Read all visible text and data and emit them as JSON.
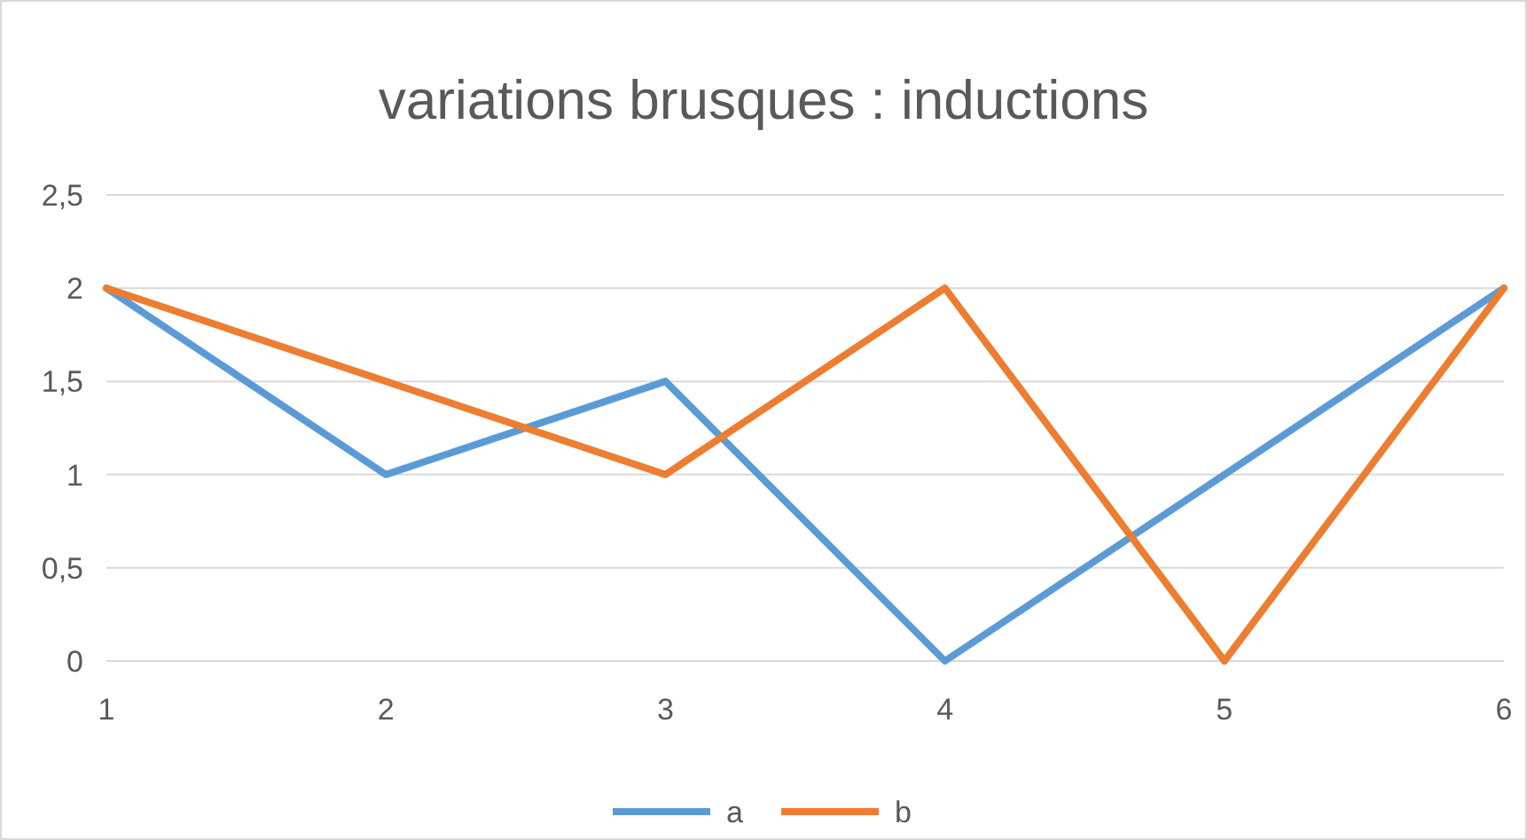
{
  "chart_data": {
    "type": "line",
    "title": "variations brusques : inductions",
    "categories": [
      "1",
      "2",
      "3",
      "4",
      "5",
      "6"
    ],
    "series": [
      {
        "name": "a",
        "color": "#5b9bd5",
        "values": [
          2,
          1,
          1.5,
          0,
          1,
          2
        ]
      },
      {
        "name": "b",
        "color": "#ed7d31",
        "values": [
          2,
          1.5,
          1,
          2,
          0,
          2
        ]
      }
    ],
    "ylim": [
      0,
      2.5
    ],
    "yticks": [
      0,
      {
        "value": 0.5,
        "label": "0,5"
      },
      1,
      {
        "value": 1.5,
        "label": "1,5"
      },
      2,
      {
        "value": 2.5,
        "label": "2,5"
      }
    ],
    "grid": "y",
    "legend": "bottom",
    "marker": "none",
    "line_style": "solid"
  }
}
